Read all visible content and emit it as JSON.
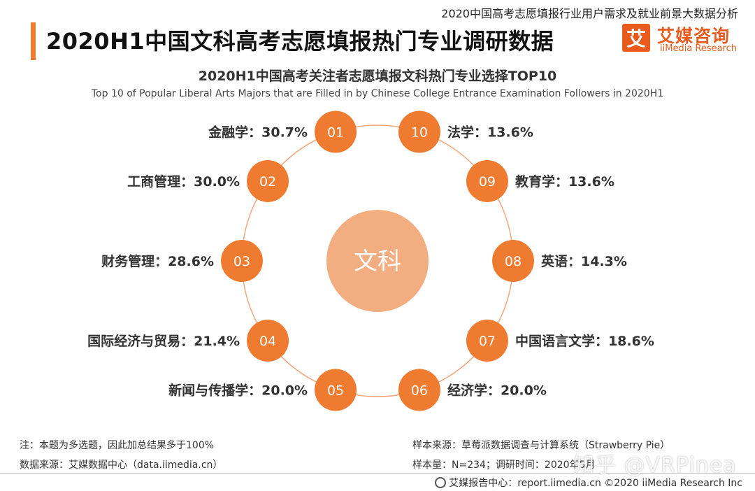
{
  "header": {
    "report_title": "2020中国高考志愿填报行业用户需求及就业前景大数据分析",
    "page_title": "2020H1中国文科高考志愿填报热门专业调研数据",
    "logo_mark": "艾",
    "logo_cn": "艾媒咨询",
    "logo_en": "iiMedia Research"
  },
  "chart_data": {
    "type": "radial-ranking",
    "title": "2020H1中国高考关注者志愿填报文科热门专业选择TOP10",
    "subtitle": "Top 10 of Popular Liberal Arts Majors that are Filled in by Chinese College Entrance Examination Followers in 2020H1",
    "center_label": "文科",
    "unit": "%",
    "items": [
      {
        "rank": "01",
        "name": "金融学",
        "value": 30.7,
        "label": "金融学：30.7%"
      },
      {
        "rank": "02",
        "name": "工商管理",
        "value": 30.0,
        "label": "工商管理：30.0%"
      },
      {
        "rank": "03",
        "name": "财务管理",
        "value": 28.6,
        "label": "财务管理：28.6%"
      },
      {
        "rank": "04",
        "name": "国际经济与贸易",
        "value": 21.4,
        "label": "国际经济与贸易：21.4%"
      },
      {
        "rank": "05",
        "name": "新闻与传播学",
        "value": 20.0,
        "label": "新闻与传播学：20.0%"
      },
      {
        "rank": "06",
        "name": "经济学",
        "value": 20.0,
        "label": "经济学：20.0%"
      },
      {
        "rank": "07",
        "name": "中国语言文学",
        "value": 18.6,
        "label": "中国语言文学：18.6%"
      },
      {
        "rank": "08",
        "name": "英语",
        "value": 14.3,
        "label": "英语：14.3%"
      },
      {
        "rank": "09",
        "name": "教育学",
        "value": 13.6,
        "label": "教育学：13.6%"
      },
      {
        "rank": "10",
        "name": "法学",
        "value": 13.6,
        "label": "法学：13.6%"
      }
    ],
    "colors": {
      "node": "#ee7b30",
      "center": "#f2ad80",
      "ring": "#f0a77a"
    }
  },
  "notes": {
    "note": "注：本题为多选题，因此加总结果多于100%",
    "data_source": "数据来源：艾媒数据中心（data.iimedia.cn）",
    "sample_source": "样本来源：草莓派数据调查与计算系统（Strawberry Pie）",
    "sample_size": "样本量：N=234；调研时间：2020年5月"
  },
  "footer": {
    "text": "艾媒报告中心：report.iimedia.cn ©2020 iiMedia Research Inc"
  },
  "watermark": "知乎 @VRPinea"
}
